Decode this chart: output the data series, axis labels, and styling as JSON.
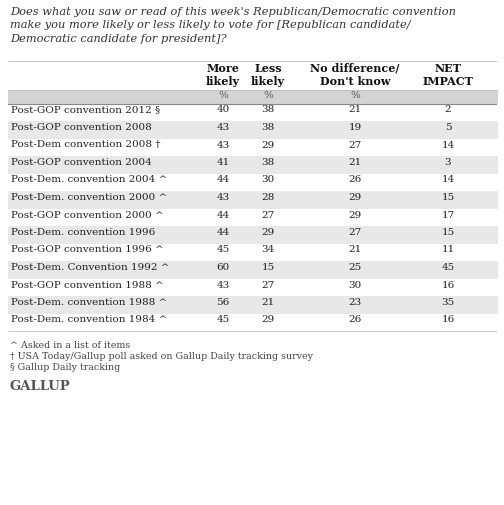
{
  "title_lines": [
    "Does what you saw or read of this week's Republican/Democratic convention",
    "make you more likely or less likely to vote for [Republican candidate/",
    "Democratic candidate for president]?"
  ],
  "col_headers": [
    "More\nlikely",
    "Less\nlikely",
    "No difference/\nDon't know",
    "NET\nIMPACT"
  ],
  "col_units": [
    "%",
    "%",
    "%",
    ""
  ],
  "rows": [
    [
      "Post-GOP convention 2012 §",
      "40",
      "38",
      "21",
      "2"
    ],
    [
      "Post-GOP convention 2008",
      "43",
      "38",
      "19",
      "5"
    ],
    [
      "Post-Dem convention 2008 †",
      "43",
      "29",
      "27",
      "14"
    ],
    [
      "Post-GOP convention 2004",
      "41",
      "38",
      "21",
      "3"
    ],
    [
      "Post-Dem. convention 2004 ^",
      "44",
      "30",
      "26",
      "14"
    ],
    [
      "Post-Dem. convention 2000 ^",
      "43",
      "28",
      "29",
      "15"
    ],
    [
      "Post-GOP convention 2000 ^",
      "44",
      "27",
      "29",
      "17"
    ],
    [
      "Post-Dem. convention 1996",
      "44",
      "29",
      "27",
      "15"
    ],
    [
      "Post-GOP convention 1996 ^",
      "45",
      "34",
      "21",
      "11"
    ],
    [
      "Post-Dem. Convention 1992 ^",
      "60",
      "15",
      "25",
      "45"
    ],
    [
      "Post-GOP convention 1988 ^",
      "43",
      "27",
      "30",
      "16"
    ],
    [
      "Post-Dem. convention 1988 ^",
      "56",
      "21",
      "23",
      "35"
    ],
    [
      "Post-Dem. convention 1984 ^",
      "45",
      "29",
      "26",
      "16"
    ]
  ],
  "footnotes": [
    "^ Asked in a list of items",
    "† USA Today/Gallup poll asked on Gallup Daily tracking survey",
    "§ Gallup Daily tracking"
  ],
  "footer": "GALLUP",
  "bg_gray": "#e8e8e8",
  "bg_white": "#ffffff",
  "stripe_gray": "#d3d3d3",
  "text_dark": "#222222",
  "text_gray": "#555555",
  "title_color": "#333333"
}
